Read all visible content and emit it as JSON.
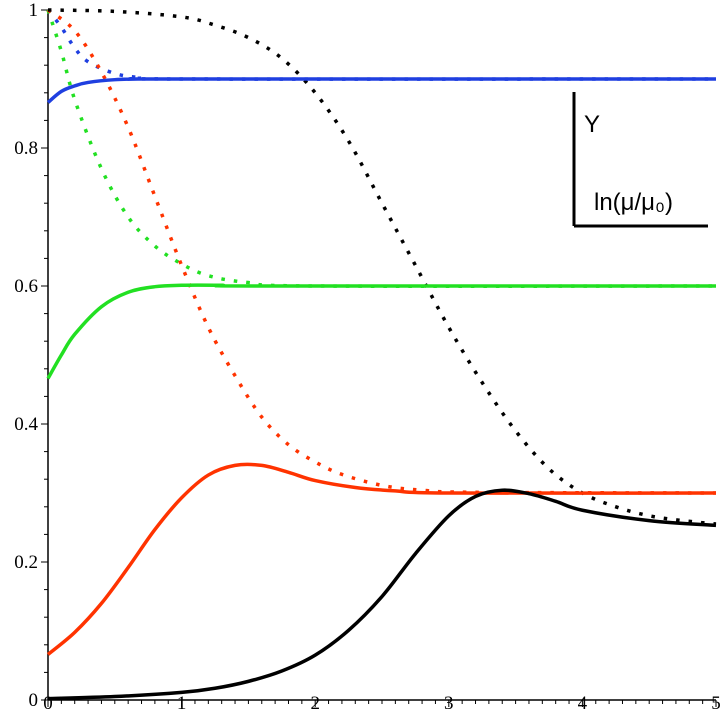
{
  "chart_data": {
    "type": "line",
    "title": "",
    "xlabel": "",
    "ylabel": "",
    "xlim": [
      0,
      5
    ],
    "ylim": [
      0,
      1
    ],
    "x_ticks": [
      0,
      1,
      2,
      3,
      4,
      5
    ],
    "x_tick_labels": [
      "0",
      "1",
      "2",
      "3",
      "4",
      "5"
    ],
    "y_ticks": [
      0,
      0.2,
      0.4,
      0.6,
      0.8,
      1
    ],
    "y_tick_labels": [
      "0",
      "0.2",
      "0.4",
      "0.6",
      "0.8",
      "1"
    ],
    "grid": false,
    "legend": {
      "placement": "top-right",
      "y_label": "Y",
      "x_label": "ln(μ/μ₀)"
    },
    "series": [
      {
        "color": "#1f3fe0",
        "style": "solid",
        "x": [
          0,
          0.1,
          0.2,
          0.3,
          0.5,
          0.7,
          1.0,
          5.0
        ],
        "y": [
          0.866,
          0.882,
          0.89,
          0.895,
          0.899,
          0.9,
          0.9,
          0.9
        ]
      },
      {
        "color": "#1f3fe0",
        "style": "dotted",
        "x": [
          0,
          0.1,
          0.2,
          0.3,
          0.5,
          0.7,
          1.0,
          5.0
        ],
        "y": [
          1.0,
          0.975,
          0.945,
          0.925,
          0.908,
          0.902,
          0.9,
          0.9
        ]
      },
      {
        "color": "#22e022",
        "style": "solid",
        "x": [
          0,
          0.1,
          0.2,
          0.4,
          0.6,
          0.8,
          1.0,
          1.3,
          1.6,
          5.0
        ],
        "y": [
          0.466,
          0.5,
          0.53,
          0.57,
          0.591,
          0.599,
          0.601,
          0.601,
          0.6,
          0.6
        ]
      },
      {
        "color": "#22e022",
        "style": "dotted",
        "x": [
          0,
          0.1,
          0.2,
          0.4,
          0.6,
          0.8,
          1.0,
          1.2,
          1.5,
          2.0,
          5.0
        ],
        "y": [
          1.0,
          0.94,
          0.87,
          0.77,
          0.7,
          0.658,
          0.632,
          0.615,
          0.605,
          0.6,
          0.6
        ]
      },
      {
        "color": "#ff3300",
        "style": "solid",
        "x": [
          0,
          0.2,
          0.4,
          0.6,
          0.8,
          1.0,
          1.2,
          1.4,
          1.6,
          1.8,
          2.0,
          2.3,
          2.6,
          3.0,
          5.0
        ],
        "y": [
          0.066,
          0.098,
          0.14,
          0.192,
          0.247,
          0.293,
          0.326,
          0.34,
          0.34,
          0.33,
          0.318,
          0.308,
          0.303,
          0.3,
          0.3
        ]
      },
      {
        "color": "#ff3300",
        "style": "dotted",
        "x": [
          0,
          0.2,
          0.4,
          0.6,
          0.8,
          1.0,
          1.2,
          1.4,
          1.6,
          1.8,
          2.0,
          2.2,
          2.5,
          2.8,
          3.2,
          5.0
        ],
        "y": [
          1.0,
          0.97,
          0.91,
          0.83,
          0.73,
          0.63,
          0.54,
          0.47,
          0.41,
          0.37,
          0.345,
          0.327,
          0.311,
          0.304,
          0.301,
          0.3
        ]
      },
      {
        "color": "#000000",
        "style": "solid",
        "x": [
          0,
          0.5,
          1.0,
          1.25,
          1.5,
          1.75,
          2.0,
          2.25,
          2.5,
          2.75,
          3.0,
          3.2,
          3.4,
          3.6,
          3.8,
          4.0,
          4.5,
          5.0
        ],
        "y": [
          0.002,
          0.005,
          0.011,
          0.017,
          0.027,
          0.042,
          0.065,
          0.101,
          0.15,
          0.212,
          0.267,
          0.295,
          0.304,
          0.299,
          0.288,
          0.275,
          0.26,
          0.253
        ]
      },
      {
        "color": "#000000",
        "style": "dotted",
        "x": [
          0,
          0.5,
          1.0,
          1.25,
          1.5,
          1.75,
          2.0,
          2.25,
          2.5,
          2.75,
          3.0,
          3.25,
          3.5,
          3.75,
          4.0,
          4.25,
          4.5,
          4.75,
          5.0
        ],
        "y": [
          1.0,
          0.998,
          0.99,
          0.978,
          0.96,
          0.93,
          0.88,
          0.81,
          0.72,
          0.63,
          0.54,
          0.46,
          0.39,
          0.335,
          0.3,
          0.28,
          0.267,
          0.26,
          0.255
        ]
      }
    ]
  }
}
